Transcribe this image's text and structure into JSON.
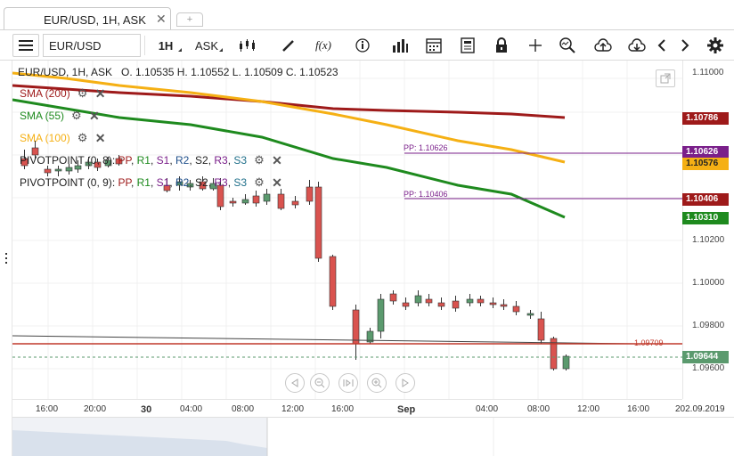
{
  "tab": {
    "title": "EUR/USD, 1H, ASK",
    "close": "✕",
    "add": "+"
  },
  "toolbar": {
    "symbol": "EUR/USD",
    "period": "1H",
    "side": "ASK",
    "fx_label": "f(x)"
  },
  "header": {
    "instrument": "EUR/USD, 1H, ASK",
    "ohlc": "O. 1.10535 H. 1.10552 L. 1.10509 C. 1.10523"
  },
  "indicators": [
    {
      "label": "SMA (200)",
      "color": "#9e1a1a"
    },
    {
      "label": "SMA (55)",
      "color": "#1e8a1e"
    },
    {
      "label": "SMA (100)",
      "color": "#f5b014"
    }
  ],
  "pivots": [
    {
      "prefix": "PIVOTPOINT (0, 8)",
      "parts": [
        " : ",
        "PP",
        ", ",
        "R1",
        ", ",
        "S1",
        ", ",
        "R2",
        ", ",
        "S2",
        ", ",
        "R3",
        ", ",
        "S3"
      ]
    },
    {
      "prefix": "PIVOTPOINT (0, 9)",
      "parts": [
        " : ",
        "PP",
        ", ",
        "R1",
        ", ",
        "S1",
        ", ",
        "R2",
        ", ",
        "S2",
        ", ",
        "R3",
        ", ",
        "S3"
      ]
    }
  ],
  "pp_labels": {
    "pp1": "PP: 1.10626",
    "pp2": "PP: 1.10406",
    "level": "1.09709"
  },
  "price_ticks": [
    "1.11000",
    "1.10200",
    "1.10000",
    "1.09800",
    "1.09600"
  ],
  "price_tags": [
    {
      "value": "1.10786",
      "bg": "#9e1a1a",
      "fg": "#ffffff"
    },
    {
      "value": "1.10626",
      "bg": "#7a1f8a",
      "fg": "#ffffff"
    },
    {
      "value": "1.10576",
      "bg": "#f5b014",
      "fg": "#222222"
    },
    {
      "value": "1.10406",
      "bg": "#9e1a1a",
      "fg": "#ffffff"
    },
    {
      "value": "1.10310",
      "bg": "#1e8a1e",
      "fg": "#ffffff"
    },
    {
      "value": "1.09644",
      "bg": "#5b9a6e",
      "fg": "#ffffff"
    }
  ],
  "time_labels": [
    "16:00",
    "20:00",
    "30",
    "04:00",
    "08:00",
    "12:00",
    "16:00",
    "Sep",
    "04:00",
    "08:00",
    "12:00",
    "16:00",
    "202.09.2019"
  ],
  "colors": {
    "bull": "#5b9a6e",
    "bear": "#d9534f",
    "sma200": "#9e1a1a",
    "sma55": "#1e8a1e",
    "sma100": "#f5b014",
    "pivot": "#7a1f8a"
  }
}
